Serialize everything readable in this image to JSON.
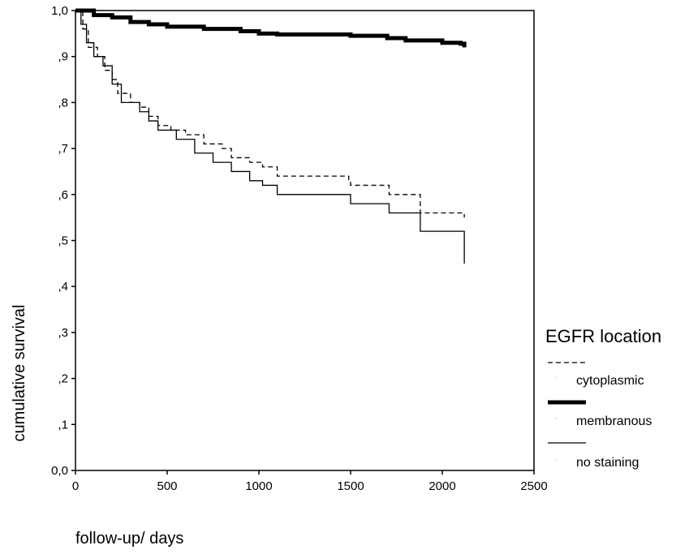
{
  "chart_data": {
    "type": "line",
    "title": "",
    "xlabel": "follow-up/ days",
    "ylabel": "cumulative survival",
    "xlim": [
      0,
      2500
    ],
    "ylim": [
      0,
      1
    ],
    "x_ticks": [
      0,
      500,
      1000,
      1500,
      2000,
      2500
    ],
    "x_tick_labels": [
      "0",
      "500",
      "1000",
      "1500",
      "2000",
      "2500"
    ],
    "y_ticks": [
      0,
      0.1,
      0.2,
      0.3,
      0.4,
      0.5,
      0.6,
      0.7,
      0.8,
      0.9,
      1.0
    ],
    "y_tick_labels": [
      "0,0",
      ",1",
      ",2",
      ",3",
      ",4",
      ",5",
      ",6",
      ",7",
      ",8",
      ",9",
      "1,0"
    ],
    "grid": false,
    "legend": {
      "title": "EGFR location",
      "position": "right",
      "entries": [
        "cytoplasmic",
        "membranous",
        "no staining"
      ]
    },
    "series": [
      {
        "name": "cytoplasmic",
        "style": "dashed",
        "color": "#000000",
        "points": [
          [
            0,
            1.0
          ],
          [
            40,
            0.96
          ],
          [
            70,
            0.92
          ],
          [
            120,
            0.9
          ],
          [
            160,
            0.87
          ],
          [
            200,
            0.85
          ],
          [
            230,
            0.82
          ],
          [
            300,
            0.8
          ],
          [
            350,
            0.79
          ],
          [
            400,
            0.77
          ],
          [
            450,
            0.75
          ],
          [
            520,
            0.74
          ],
          [
            600,
            0.73
          ],
          [
            700,
            0.71
          ],
          [
            800,
            0.7
          ],
          [
            850,
            0.68
          ],
          [
            950,
            0.67
          ],
          [
            1020,
            0.66
          ],
          [
            1100,
            0.64
          ],
          [
            1490,
            0.63
          ],
          [
            1500,
            0.62
          ],
          [
            1710,
            0.6
          ],
          [
            1880,
            0.56
          ],
          [
            2120,
            0.55
          ]
        ]
      },
      {
        "name": "membranous",
        "style": "thick",
        "color": "#000000",
        "points": [
          [
            0,
            1.0
          ],
          [
            100,
            0.99
          ],
          [
            200,
            0.985
          ],
          [
            300,
            0.975
          ],
          [
            400,
            0.97
          ],
          [
            500,
            0.965
          ],
          [
            700,
            0.96
          ],
          [
            900,
            0.955
          ],
          [
            1000,
            0.95
          ],
          [
            1100,
            0.948
          ],
          [
            1500,
            0.945
          ],
          [
            1700,
            0.94
          ],
          [
            1800,
            0.935
          ],
          [
            2000,
            0.93
          ],
          [
            2100,
            0.928
          ],
          [
            2120,
            0.92
          ]
        ]
      },
      {
        "name": "no staining",
        "style": "solid",
        "color": "#000000",
        "points": [
          [
            0,
            1.0
          ],
          [
            30,
            0.97
          ],
          [
            60,
            0.93
          ],
          [
            100,
            0.9
          ],
          [
            150,
            0.88
          ],
          [
            200,
            0.84
          ],
          [
            250,
            0.8
          ],
          [
            350,
            0.78
          ],
          [
            400,
            0.76
          ],
          [
            450,
            0.74
          ],
          [
            550,
            0.72
          ],
          [
            650,
            0.69
          ],
          [
            750,
            0.67
          ],
          [
            850,
            0.65
          ],
          [
            950,
            0.63
          ],
          [
            1020,
            0.62
          ],
          [
            1100,
            0.6
          ],
          [
            1500,
            0.58
          ],
          [
            1710,
            0.56
          ],
          [
            1880,
            0.52
          ],
          [
            2120,
            0.45
          ]
        ]
      }
    ]
  }
}
